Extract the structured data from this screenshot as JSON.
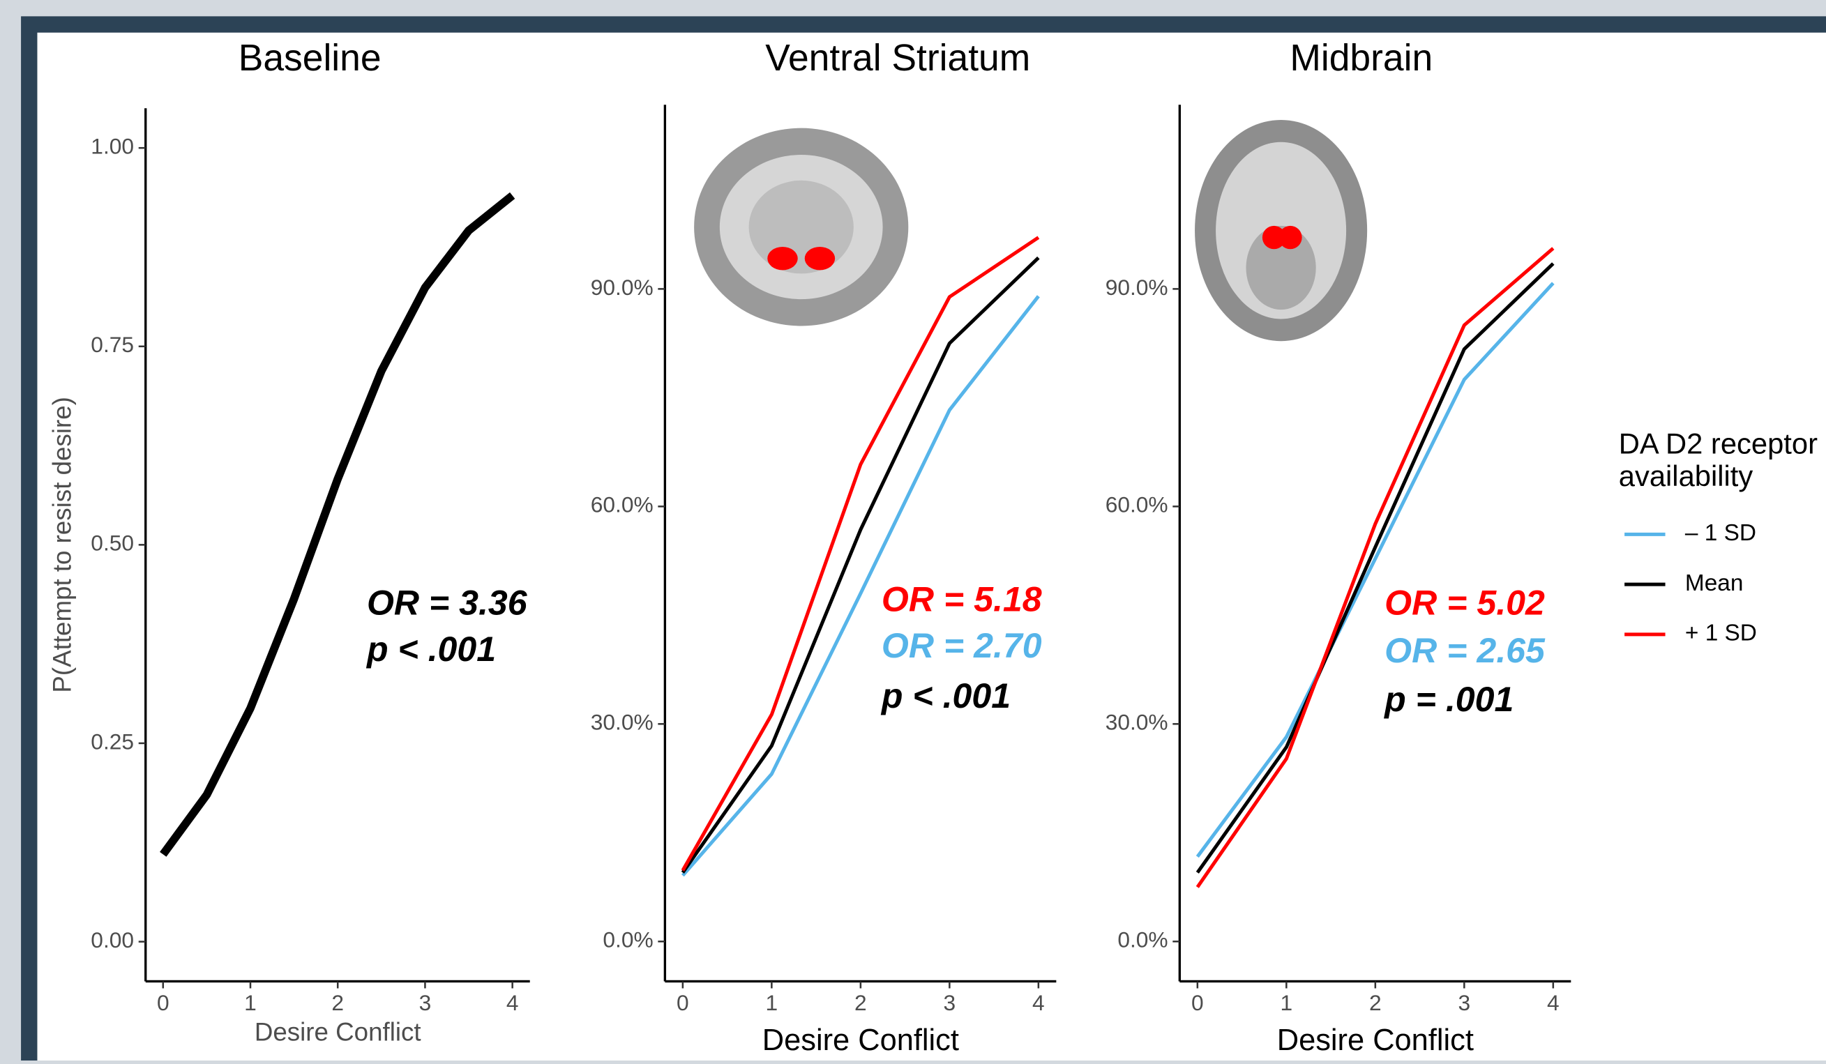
{
  "chart_data": [
    {
      "type": "line",
      "title": "Baseline",
      "x_label": "Desire Conflict",
      "y_label": "P(Attempt to resist desire)",
      "x": [
        0,
        0.5,
        1,
        1.5,
        2,
        2.5,
        3,
        3.5,
        4
      ],
      "values": [
        0.11,
        0.185,
        0.294,
        0.432,
        0.583,
        0.719,
        0.824,
        0.896,
        0.94
      ],
      "color": "#000000",
      "xlim": [
        -0.2,
        4.2
      ],
      "xticks": [
        0,
        1,
        2,
        3,
        4
      ],
      "ylim": [
        -0.05,
        1.05
      ],
      "yticks": [
        {
          "value": 0,
          "label": "0.00"
        },
        0.25,
        {
          "value": 0.5,
          "label": "0.50"
        },
        0.75,
        {
          "value": 1,
          "label": "1.00"
        }
      ],
      "annotations": [
        {
          "text": "OR = 3.36",
          "color": "#000000"
        },
        {
          "text": "p < .001",
          "color": "#000000"
        }
      ]
    },
    {
      "type": "line",
      "title": "Ventral Striatum",
      "x_label": "Desire Conflict",
      "x": [
        0,
        1,
        2,
        3,
        4
      ],
      "series": [
        {
          "name": "– 1 SD",
          "color": "#56b4e9",
          "values": [
            9.1,
            23.1,
            48,
            73.3,
            89
          ]
        },
        {
          "name": "Mean",
          "color": "#000000",
          "values": [
            9.5,
            27,
            56.8,
            82.5,
            94.3
          ]
        },
        {
          "name": "+ 1 SD",
          "color": "#ff0000",
          "values": [
            9.8,
            31.3,
            65.8,
            88.9,
            97.1
          ]
        }
      ],
      "xlim": [
        -0.2,
        4.2
      ],
      "xticks": [
        0,
        1,
        2,
        3,
        4
      ],
      "ylim": [
        -5.5,
        115.4
      ],
      "yticks": [
        {
          "value": 0,
          "label": "0.0%"
        },
        {
          "value": 30,
          "label": "30.0%"
        },
        {
          "value": 60,
          "label": "60.0%"
        },
        {
          "value": 90,
          "label": "90.0%"
        }
      ],
      "annotations": [
        {
          "text": "OR = 5.18",
          "color": "#ff0000"
        },
        {
          "text": "OR = 2.70",
          "color": "#56b4e9"
        },
        {
          "text": "p < .001",
          "color": "#000000"
        }
      ]
    },
    {
      "type": "line",
      "title": "Midbrain",
      "x_label": "Desire Conflict",
      "x": [
        0,
        1,
        2,
        3,
        4
      ],
      "series": [
        {
          "name": "– 1 SD",
          "color": "#56b4e9",
          "values": [
            11.7,
            28.2,
            52.8,
            77.5,
            90.8
          ]
        },
        {
          "name": "Mean",
          "color": "#000000",
          "values": [
            9.5,
            26.8,
            54.4,
            81.7,
            93.5
          ]
        },
        {
          "name": "+ 1 SD",
          "color": "#ff0000",
          "values": [
            7.5,
            25.2,
            57.6,
            85,
            95.6
          ]
        }
      ],
      "xlim": [
        -0.2,
        4.2
      ],
      "xticks": [
        0,
        1,
        2,
        3,
        4
      ],
      "ylim": [
        -5.5,
        115.4
      ],
      "yticks": [
        {
          "value": 0,
          "label": "0.0%"
        },
        {
          "value": 30,
          "label": "30.0%"
        },
        {
          "value": 60,
          "label": "60.0%"
        },
        {
          "value": 90,
          "label": "90.0%"
        }
      ],
      "legend_title": [
        "DA D2 receptor",
        "availability"
      ],
      "annotations": [
        {
          "text": "OR = 5.02",
          "color": "#ff0000"
        },
        {
          "text": "OR = 2.65",
          "color": "#56b4e9"
        },
        {
          "text": "p = .001",
          "color": "#000000"
        }
      ]
    }
  ]
}
